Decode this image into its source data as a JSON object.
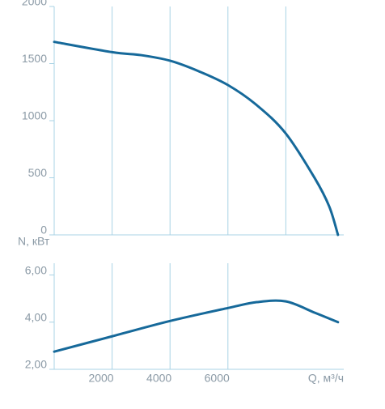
{
  "chart_data": [
    {
      "type": "line",
      "ylabel": "N, кВт",
      "x": [
        0,
        2000,
        3000,
        4000,
        5000,
        6000,
        7000,
        8000,
        9000,
        9500,
        9800
      ],
      "series": [
        {
          "color": "#16699a",
          "values": [
            1690,
            1600,
            1574,
            1525,
            1432,
            1312,
            1135,
            887,
            496,
            248,
            0
          ]
        }
      ],
      "xlim": [
        0,
        10000
      ],
      "xticks": [
        2000,
        4000,
        6000,
        8000
      ],
      "ylim": [
        0,
        2000
      ],
      "yticks": [
        0,
        500,
        1000,
        1500,
        2000
      ],
      "grid": true
    },
    {
      "type": "line",
      "xlabel": "Q, м³/ч",
      "x": [
        0,
        2000,
        4000,
        6000,
        7000,
        8000,
        9000,
        9800
      ],
      "series": [
        {
          "color": "#16699a",
          "values": [
            2.75,
            3.4,
            4.05,
            4.6,
            4.85,
            4.88,
            4.4,
            4.0
          ]
        }
      ],
      "xlim": [
        0,
        10000
      ],
      "xticks": [
        2000,
        4000,
        6000
      ],
      "ylim": [
        2,
        6.5
      ],
      "yticks": [
        {
          "value": 2,
          "label": "2,00"
        },
        {
          "value": 4,
          "label": "4,00"
        },
        {
          "value": 6,
          "label": "6,00"
        }
      ],
      "grid": true
    }
  ]
}
